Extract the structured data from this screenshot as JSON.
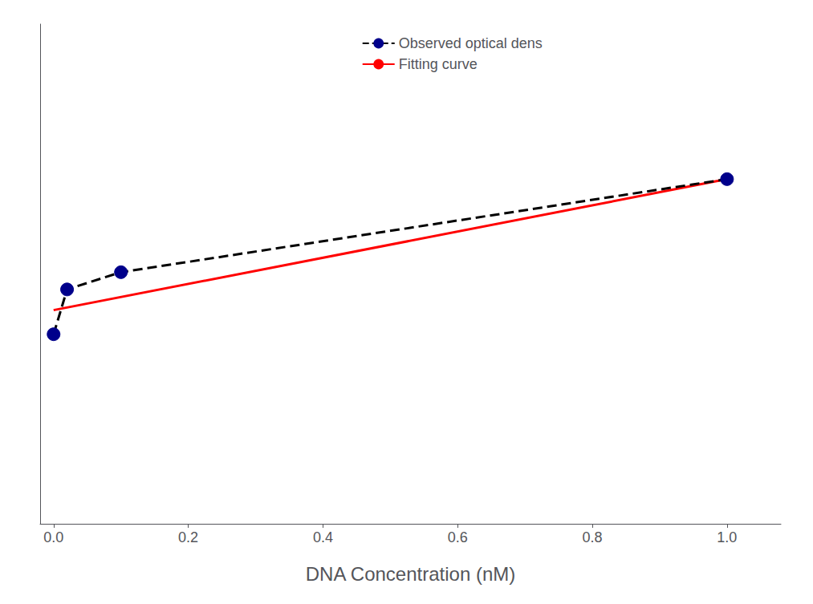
{
  "chart_data": {
    "type": "line",
    "xlabel": "DNA Concentration (nM)",
    "series": [
      {
        "name": "Observed optical dens",
        "color": "#000000",
        "colors": [
          "#00008B",
          "#00008B",
          "#00008B",
          "#00008B"
        ],
        "line_style": "dashed",
        "marker": "circle",
        "x": [
          0.0,
          0.02,
          0.1,
          1.0
        ],
        "values": [
          0.55,
          0.68,
          0.73,
          1.0
        ]
      },
      {
        "name": "Fitting curve",
        "color": "#FF0000",
        "line_style": "solid",
        "x": [
          0.0,
          1.0
        ],
        "values": [
          0.62,
          1.0
        ]
      }
    ],
    "xlim": [
      -0.02,
      1.08
    ],
    "xticks": [
      {
        "value": 0.0,
        "label": "0.0"
      },
      0.2,
      0.4,
      0.6,
      0.8,
      {
        "value": 1.0,
        "label": "1.0"
      }
    ],
    "ylim": [
      0.0,
      1.45
    ],
    "yticks": [],
    "tick_labels": "x",
    "grid": false,
    "legend": "top"
  }
}
